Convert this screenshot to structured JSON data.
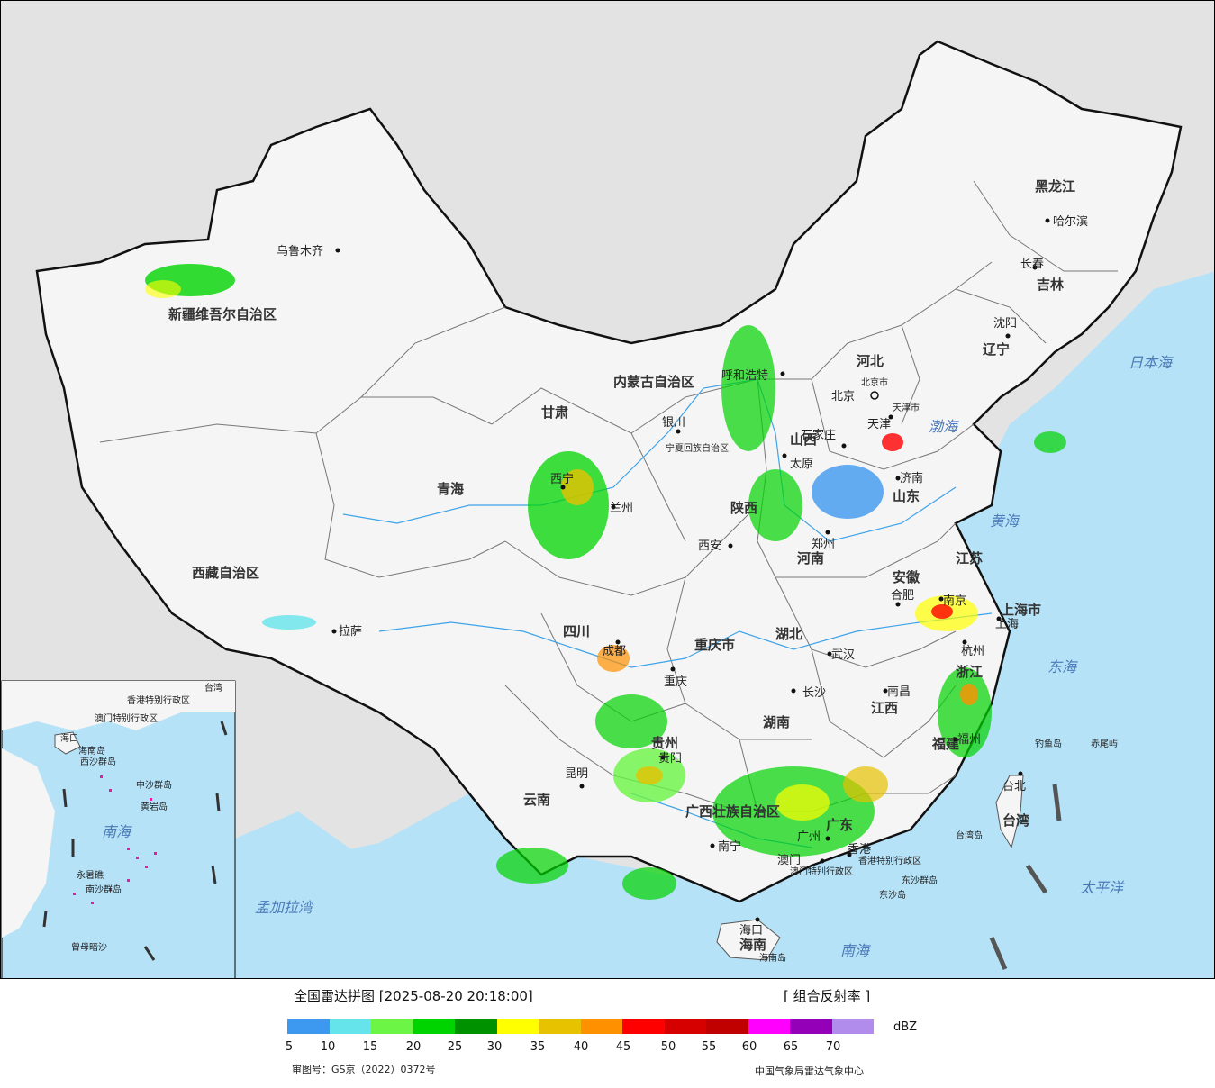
{
  "map": {
    "provinces": [
      {
        "id": "xinjiang",
        "name": "新疆维吾尔自治区"
      },
      {
        "id": "xizang",
        "name": "西藏自治区"
      },
      {
        "id": "qinghai",
        "name": "青海"
      },
      {
        "id": "gansu",
        "name": "甘肃"
      },
      {
        "id": "neimenggu",
        "name": "内蒙古自治区"
      },
      {
        "id": "heilongjiang",
        "name": "黑龙江"
      },
      {
        "id": "jilin",
        "name": "吉林"
      },
      {
        "id": "liaoning",
        "name": "辽宁"
      },
      {
        "id": "hebei",
        "name": "河北"
      },
      {
        "id": "shanxi",
        "name": "山西"
      },
      {
        "id": "shandong",
        "name": "山东"
      },
      {
        "id": "henan",
        "name": "河南"
      },
      {
        "id": "shaanxi",
        "name": "陕西"
      },
      {
        "id": "ningxia",
        "name": "宁夏回族自治区"
      },
      {
        "id": "sichuan",
        "name": "四川"
      },
      {
        "id": "chongqing",
        "name": "重庆市"
      },
      {
        "id": "hubei",
        "name": "湖北"
      },
      {
        "id": "anhui",
        "name": "安徽"
      },
      {
        "id": "jiangsu",
        "name": "江苏"
      },
      {
        "id": "shanghai",
        "name": "上海市"
      },
      {
        "id": "zhejiang",
        "name": "浙江"
      },
      {
        "id": "hunan",
        "name": "湖南"
      },
      {
        "id": "jiangxi",
        "name": "江西"
      },
      {
        "id": "fujian",
        "name": "福建"
      },
      {
        "id": "guizhou",
        "name": "贵州"
      },
      {
        "id": "yunnan",
        "name": "云南"
      },
      {
        "id": "guangxi",
        "name": "广西壮族自治区"
      },
      {
        "id": "guangdong",
        "name": "广东"
      },
      {
        "id": "hainan",
        "name": "海南"
      },
      {
        "id": "taiwan",
        "name": "台湾"
      },
      {
        "id": "beijing",
        "name": "北京市"
      },
      {
        "id": "tianjin",
        "name": "天津市"
      },
      {
        "id": "hk",
        "name": "香港特别行政区"
      },
      {
        "id": "macau",
        "name": "澳门特别行政区"
      }
    ],
    "cities": [
      {
        "id": "urumqi",
        "name": "乌鲁木齐"
      },
      {
        "id": "lhasa",
        "name": "拉萨"
      },
      {
        "id": "xining",
        "name": "西宁"
      },
      {
        "id": "lanzhou",
        "name": "兰州"
      },
      {
        "id": "yinchuan",
        "name": "银川"
      },
      {
        "id": "huhehaote",
        "name": "呼和浩特"
      },
      {
        "id": "beijing",
        "name": "北京"
      },
      {
        "id": "tianjin",
        "name": "天津"
      },
      {
        "id": "shijiazhuang",
        "name": "石家庄"
      },
      {
        "id": "taiyuan",
        "name": "太原"
      },
      {
        "id": "jinan",
        "name": "济南"
      },
      {
        "id": "zhengzhou",
        "name": "郑州"
      },
      {
        "id": "xian",
        "name": "西安"
      },
      {
        "id": "chengdu",
        "name": "成都"
      },
      {
        "id": "chongqing",
        "name": "重庆"
      },
      {
        "id": "wuhan",
        "name": "武汉"
      },
      {
        "id": "hefei",
        "name": "合肥"
      },
      {
        "id": "nanjing",
        "name": "南京"
      },
      {
        "id": "shanghai",
        "name": "上海"
      },
      {
        "id": "hangzhou",
        "name": "杭州"
      },
      {
        "id": "changsha",
        "name": "长沙"
      },
      {
        "id": "nanchang",
        "name": "南昌"
      },
      {
        "id": "fuzhou",
        "name": "福州"
      },
      {
        "id": "guiyang",
        "name": "贵阳"
      },
      {
        "id": "kunming",
        "name": "昆明"
      },
      {
        "id": "nanning",
        "name": "南宁"
      },
      {
        "id": "guangzhou",
        "name": "广州"
      },
      {
        "id": "hongkong",
        "name": "香港"
      },
      {
        "id": "macau",
        "name": "澳门"
      },
      {
        "id": "haikou",
        "name": "海口"
      },
      {
        "id": "taibei",
        "name": "台北"
      },
      {
        "id": "shenyang",
        "name": "沈阳"
      },
      {
        "id": "changchun",
        "name": "长春"
      },
      {
        "id": "haerbin",
        "name": "哈尔滨"
      }
    ],
    "seas": [
      {
        "id": "japan_sea",
        "name": "日本海"
      },
      {
        "id": "bohai",
        "name": "渤海"
      },
      {
        "id": "huanghai",
        "name": "黄海"
      },
      {
        "id": "donghai",
        "name": "东海"
      },
      {
        "id": "nanhai",
        "name": "南海"
      },
      {
        "id": "taipingyang",
        "name": "太平洋"
      },
      {
        "id": "bengal",
        "name": "孟加拉湾"
      }
    ],
    "islands": [
      {
        "id": "diaoyu",
        "name": "钓鱼岛"
      },
      {
        "id": "chiwei",
        "name": "赤尾屿"
      },
      {
        "id": "taiwan_island",
        "name": "台湾岛"
      },
      {
        "id": "hainan_island",
        "name": "海南岛"
      },
      {
        "id": "dongsha",
        "name": "东沙群岛"
      },
      {
        "id": "dongsha_island",
        "name": "东沙岛"
      }
    ],
    "inset": {
      "labels": [
        {
          "id": "xisha",
          "name": "西沙群岛"
        },
        {
          "id": "zhongsha",
          "name": "中沙群岛"
        },
        {
          "id": "nansha",
          "name": "南沙群岛"
        },
        {
          "id": "huangyan",
          "name": "黄岩岛"
        },
        {
          "id": "nanhai",
          "name": "南海"
        },
        {
          "id": "haikou",
          "name": "海口"
        },
        {
          "id": "hainan",
          "name": "海南岛"
        },
        {
          "id": "zengmu",
          "name": "曾母暗沙"
        },
        {
          "id": "yongshu",
          "name": "永暑礁"
        },
        {
          "id": "taiwan",
          "name": "台湾"
        },
        {
          "id": "hk",
          "name": "香港特别行政区"
        },
        {
          "id": "macau",
          "name": "澳门特别行政区"
        }
      ]
    }
  },
  "legend": {
    "title": "全国雷达拼图 [2025-08-20 20:18:00]",
    "product": "[ 组合反射率 ]",
    "unit": "dBZ",
    "colors": [
      "#3d99f0",
      "#65e5eb",
      "#6cf545",
      "#00d400",
      "#009100",
      "#ffff00",
      "#e6c200",
      "#ff9000",
      "#ff0000",
      "#d60000",
      "#c00000",
      "#ff00ff",
      "#9300b7",
      "#b18ced"
    ],
    "ticks": [
      "5",
      "10",
      "15",
      "20",
      "25",
      "30",
      "35",
      "40",
      "45",
      "50",
      "55",
      "60",
      "65",
      "70"
    ],
    "approval": "审图号：GS京（2022）0372号",
    "credit": "中国气象局雷达气象中心"
  }
}
